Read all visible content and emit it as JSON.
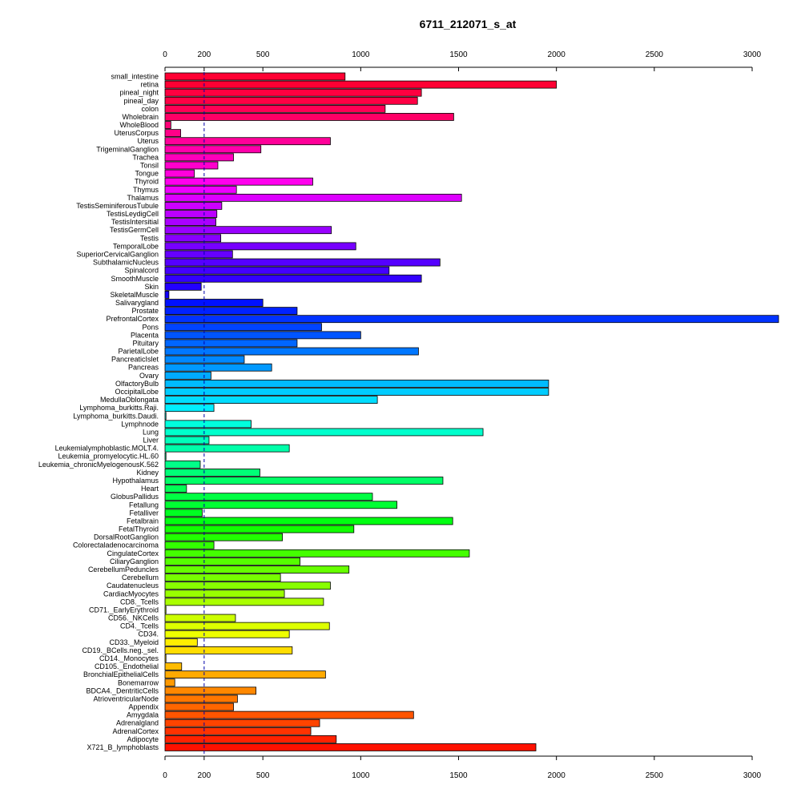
{
  "chart_data": {
    "type": "bar",
    "orientation": "horizontal",
    "title": "6711_212071_s_at",
    "xlabel": "",
    "ylabel": "",
    "xlim": [
      0,
      3135
    ],
    "x_ticks": [
      0,
      200,
      500,
      1000,
      1500,
      2000,
      2500,
      3000
    ],
    "reference_line": 200,
    "grid": false,
    "legend": "none",
    "categories": [
      "small_intestine",
      "retina",
      "pineal_night",
      "pineal_day",
      "colon",
      "Wholebrain",
      "WholeBlood",
      "UterusCorpus",
      "Uterus",
      "TrigeminalGanglion",
      "Trachea",
      "Tonsil",
      "Tongue",
      "Thyroid",
      "Thymus",
      "Thalamus",
      "TestisSeminiferousTubule",
      "TestisLeydigCell",
      "TestisIntersitial",
      "TestisGermCell",
      "Testis",
      "TemporalLobe",
      "SuperiorCervicalGanglion",
      "SubthalamicNucleus",
      "Spinalcord",
      "SmoothMuscle",
      "Skin",
      "SkeletalMuscle",
      "Salivarygland",
      "Prostate",
      "PrefrontalCortex",
      "Pons",
      "Placenta",
      "Pituitary",
      "ParietalLobe",
      "PancreaticIslet",
      "Pancreas",
      "Ovary",
      "OlfactoryBulb",
      "OccipitalLobe",
      "MedullaOblongata",
      "Lymphoma_burkitts.Raji.",
      "Lymphoma_burkitts.Daudi.",
      "Lymphnode",
      "Lung",
      "Liver",
      "Leukemialymphoblastic.MOLT.4.",
      "Leukemia_promyelocytic.HL.60",
      "Leukemia_chronicMyelogenousK.562",
      "Kidney",
      "Hypothalamus",
      "Heart",
      "GlobusPallidus",
      "Fetallung",
      "Fetalliver",
      "Fetalbrain",
      "FetalThyroid",
      "DorsalRootGanglion",
      "Colorectaladenocarcinoma",
      "CingulateCortex",
      "CiliaryGanglion",
      "CerebellumPeduncles",
      "Cerebellum",
      "Caudatenucleus",
      "CardiacMyocytes",
      "CD8._Tcells",
      "CD71._EarlyErythroid",
      "CD56._NKCells",
      "CD4._Tcells",
      "CD34.",
      "CD33._Myeloid",
      "CD19._BCells.neg._sel.",
      "CD14._Monocytes",
      "CD105._Endothelial",
      "BronchialEpithelialCells",
      "Bonemarrow",
      "BDCA4._DentriticCells",
      "AtrioventricularNode",
      "Appendix",
      "Amygdala",
      "Adrenalgland",
      "AdrenalCortex",
      "Adipocyte",
      "X721_B_lymphoblasts"
    ],
    "values": [
      920,
      2000,
      1310,
      1290,
      1125,
      1475,
      30,
      80,
      845,
      490,
      350,
      270,
      150,
      755,
      365,
      1515,
      290,
      265,
      260,
      850,
      285,
      975,
      345,
      1405,
      1145,
      1310,
      185,
      20,
      500,
      675,
      3135,
      800,
      1000,
      675,
      1295,
      405,
      545,
      235,
      1960,
      1960,
      1085,
      250,
      5,
      440,
      1625,
      225,
      635,
      5,
      180,
      485,
      1420,
      110,
      1060,
      1185,
      190,
      1470,
      965,
      600,
      250,
      1555,
      690,
      940,
      590,
      845,
      610,
      810,
      5,
      360,
      840,
      635,
      165,
      650,
      5,
      85,
      820,
      50,
      465,
      370,
      350,
      1270,
      790,
      745,
      875,
      1895
    ],
    "colors": [
      "#ff0033",
      "#ff0033",
      "#ff0040",
      "#ff0044",
      "#ff0055",
      "#ff0066",
      "#ff0077",
      "#ff0088",
      "#ff0099",
      "#ff00aa",
      "#ff00bb",
      "#ff00cc",
      "#ff00dd",
      "#ff00ee",
      "#ee00ff",
      "#dd00ff",
      "#cc00ff",
      "#bb00ff",
      "#aa00ff",
      "#9900ff",
      "#8800ff",
      "#7700ff",
      "#6600ff",
      "#5500ff",
      "#4400ff",
      "#3300ff",
      "#2200ff",
      "#1100ff",
      "#0011ff",
      "#0022ff",
      "#0033ff",
      "#0044ff",
      "#0055ff",
      "#0066ff",
      "#0077ff",
      "#0088ff",
      "#0099ff",
      "#00aaff",
      "#00bbff",
      "#00ccff",
      "#00ddff",
      "#00eeff",
      "#00ffee",
      "#00ffdd",
      "#00ffcc",
      "#00ffbb",
      "#00ffaa",
      "#00ff99",
      "#00ff88",
      "#00ff77",
      "#00ff66",
      "#00ff55",
      "#00ff44",
      "#00ff33",
      "#00ff22",
      "#00ff11",
      "#11ff00",
      "#22ff00",
      "#33ff00",
      "#44ff00",
      "#55ff00",
      "#66ff00",
      "#77ff00",
      "#88ff00",
      "#99ff00",
      "#aaff00",
      "#bbff00",
      "#ccff00",
      "#ddff00",
      "#eeff00",
      "#ffee00",
      "#ffdd00",
      "#ffcc00",
      "#ffbb00",
      "#ffaa00",
      "#ff9900",
      "#ff8800",
      "#ff7700",
      "#ff6600",
      "#ff5500",
      "#ff4400",
      "#ff3300",
      "#ff2200",
      "#ff1100"
    ]
  }
}
